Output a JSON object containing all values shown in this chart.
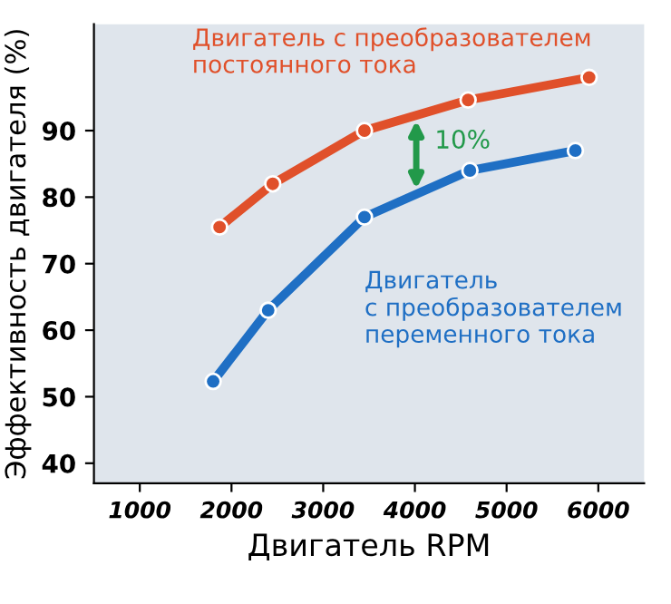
{
  "chart_data": {
    "type": "line",
    "xlabel": "Двигатель RPM",
    "ylabel": "Эффективность двигателя (%)",
    "xlim": [
      500,
      6500
    ],
    "xticks": [
      1000,
      2000,
      3000,
      4000,
      5000,
      6000
    ],
    "ylim": [
      37,
      106
    ],
    "yticks": [
      40,
      50,
      60,
      70,
      80,
      90
    ],
    "grid": false,
    "legend": false,
    "marker": "circle",
    "line_style": "solid",
    "series": [
      {
        "name": "Двигатель с преобразователем\nпостоянного тока",
        "color": "#e0502a",
        "x": [
          1870,
          2450,
          3450,
          4580,
          5900
        ],
        "values": [
          75.5,
          82,
          90,
          94.6,
          98
        ]
      },
      {
        "name": "Двигатель\nс преобразователем\nпеременного тока",
        "color": "#1f6fc4",
        "x": [
          1800,
          2400,
          3450,
          4600,
          5750
        ],
        "values": [
          52.3,
          63,
          77,
          84,
          87
        ]
      }
    ],
    "annotations": [
      "10%"
    ]
  }
}
